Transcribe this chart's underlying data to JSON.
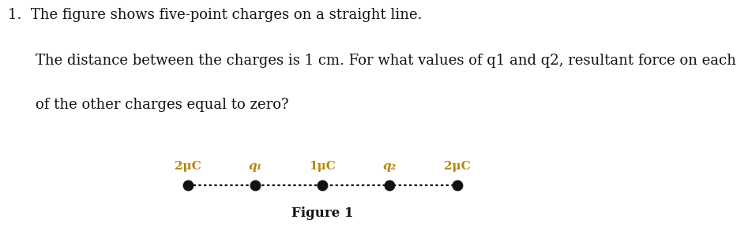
{
  "title_line1": "1.  The figure shows five-point charges on a straight line.",
  "title_line2": "The distance between the charges is 1 cm. For what values of q1 and q2, resultant force on each",
  "title_line3": "of the other charges equal to zero?",
  "figure_label": "Figure 1",
  "charges": [
    0,
    1,
    2,
    3,
    4
  ],
  "labels": [
    "2μC",
    "q₁",
    "1μC",
    "q₂",
    "2μC"
  ],
  "label_color": "#b8860b",
  "dot_color": "#111111",
  "line_color": "#111111",
  "background_color": "#ffffff",
  "text_color": "#111111",
  "fig_width": 8.16,
  "fig_height": 2.92,
  "text_fontsize": 13,
  "label_fontsize": 11,
  "figure_label_fontsize": 12
}
